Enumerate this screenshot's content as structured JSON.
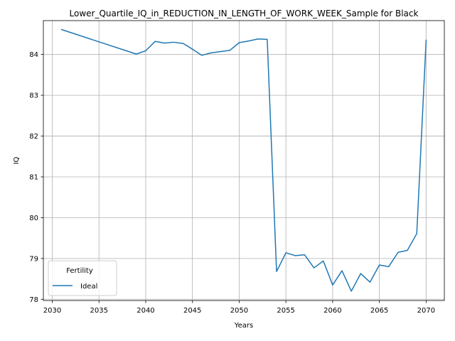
{
  "chart_data": {
    "type": "line",
    "title": "Lower_Quartile_IQ_in_REDUCTION_IN_LENGTH_OF_WORK_WEEK_Sample for Black",
    "xlabel": "Years",
    "ylabel": "IQ",
    "xlim": [
      2029.05,
      2071.95
    ],
    "ylim": [
      77.97,
      84.83
    ],
    "xticks": [
      2030,
      2035,
      2040,
      2045,
      2050,
      2055,
      2060,
      2065,
      2070
    ],
    "yticks": [
      78,
      79,
      80,
      81,
      82,
      83,
      84
    ],
    "grid": true,
    "legend": {
      "title": "Fertility",
      "placement": "lower-left"
    },
    "colors": {
      "series": "#1f77b4",
      "grid": "#b0b0b0",
      "axes": "#000000"
    },
    "series": [
      {
        "name": "Ideal",
        "x": [
          2031,
          2039,
          2040,
          2041,
          2042,
          2043,
          2044,
          2045,
          2046,
          2047,
          2048,
          2049,
          2050,
          2051,
          2052,
          2053,
          2054,
          2055,
          2056,
          2057,
          2058,
          2059,
          2060,
          2061,
          2062,
          2063,
          2064,
          2065,
          2066,
          2067,
          2068,
          2069,
          2070
        ],
        "values": [
          84.61,
          84.01,
          84.09,
          84.32,
          84.28,
          84.3,
          84.27,
          84.13,
          83.98,
          84.04,
          84.07,
          84.1,
          84.29,
          84.33,
          84.38,
          84.37,
          78.68,
          79.14,
          79.07,
          79.09,
          78.77,
          78.94,
          78.35,
          78.7,
          78.2,
          78.63,
          78.42,
          78.84,
          78.8,
          79.15,
          79.2,
          79.61,
          84.35
        ]
      }
    ]
  }
}
